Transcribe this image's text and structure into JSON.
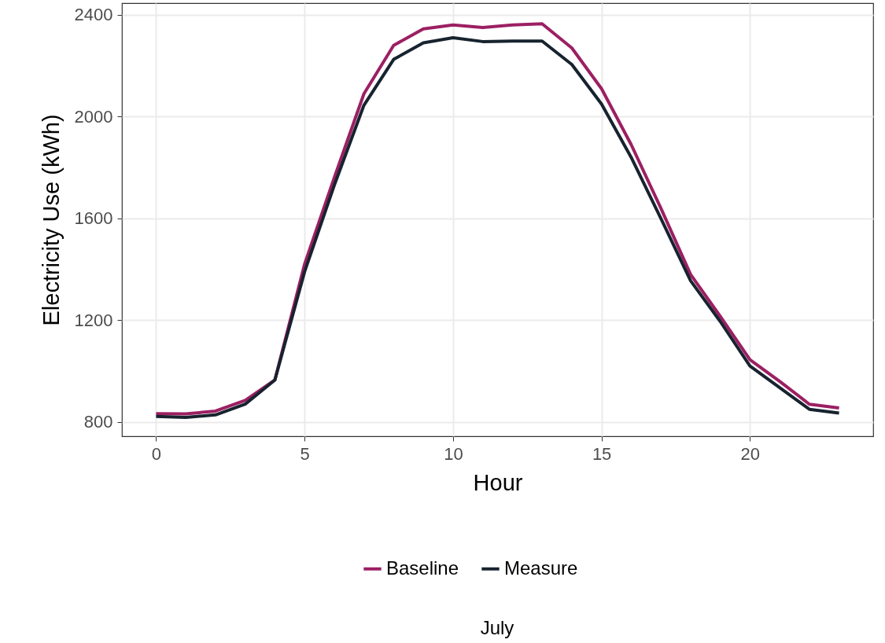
{
  "chart_data": {
    "type": "line",
    "xlabel": "Hour",
    "ylabel": "Electricity Use (kWh)",
    "annotations": [
      "July"
    ],
    "x": [
      0,
      1,
      2,
      3,
      4,
      5,
      6,
      7,
      8,
      9,
      10,
      11,
      12,
      13,
      14,
      15,
      16,
      17,
      18,
      19,
      20,
      21,
      22,
      23
    ],
    "series": [
      {
        "name": "Baseline",
        "color": "#9c1f63",
        "values": [
          833,
          832,
          843,
          885,
          965,
          1420,
          1760,
          2090,
          2280,
          2345,
          2360,
          2350,
          2360,
          2365,
          2270,
          2110,
          1890,
          1640,
          1380,
          1215,
          1045,
          960,
          870,
          855
        ]
      },
      {
        "name": "Measure",
        "color": "#17232f",
        "values": [
          822,
          818,
          828,
          870,
          965,
          1390,
          1730,
          2045,
          2225,
          2290,
          2310,
          2295,
          2297,
          2297,
          2205,
          2050,
          1840,
          1600,
          1355,
          1195,
          1020,
          935,
          850,
          835
        ]
      }
    ],
    "xlim": [
      -1.15,
      24.15
    ],
    "ylim": [
      744,
      2446
    ],
    "xticks": [
      0,
      5,
      10,
      15,
      20
    ],
    "yticks": [
      800,
      1200,
      1600,
      2000,
      2400
    ],
    "grid": true,
    "legend": "bottom",
    "marker": "none",
    "line_style": "solid"
  }
}
